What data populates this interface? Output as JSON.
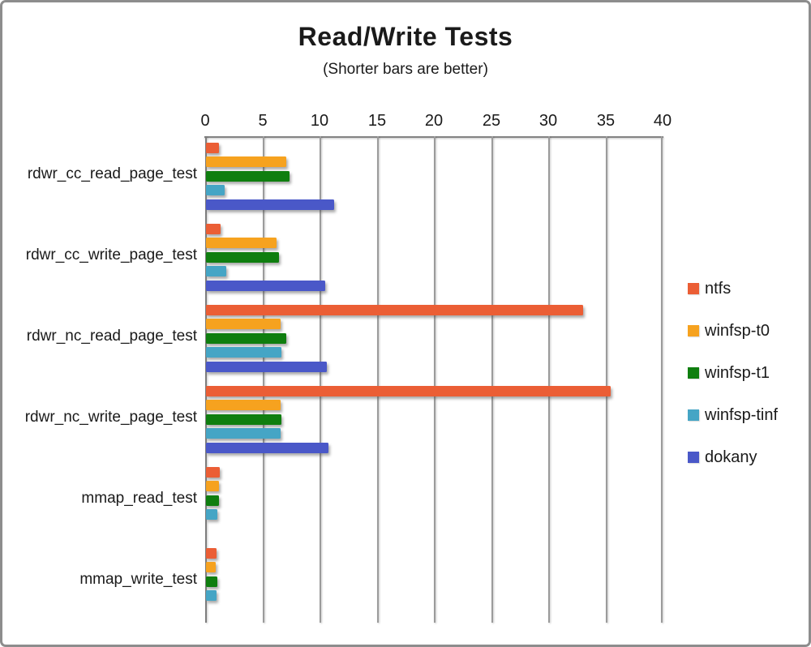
{
  "window": {
    "background": "#ffffff",
    "frame_border_color": "#8d8d8d"
  },
  "chart_data": {
    "type": "bar",
    "orientation": "horizontal",
    "title": "Read/Write Tests",
    "subtitle": "(Shorter bars are better)",
    "axis": {
      "position": "top",
      "min": 0,
      "max": 40,
      "tick_interval": 5,
      "tick_labels": [
        "0",
        "5",
        "10",
        "15",
        "20",
        "25",
        "30",
        "35",
        "40"
      ],
      "grid": true
    },
    "categories": [
      "rdwr_cc_read_page_test",
      "rdwr_cc_write_page_test",
      "rdwr_nc_read_page_test",
      "rdwr_nc_write_page_test",
      "mmap_read_test",
      "mmap_write_test"
    ],
    "series": [
      {
        "name": "ntfs",
        "color": "#EB5E35",
        "values": [
          1.1,
          1.3,
          33.0,
          35.4,
          1.2,
          0.9
        ]
      },
      {
        "name": "winfsp-t0",
        "color": "#F6A21F",
        "values": [
          7.0,
          6.2,
          6.5,
          6.5,
          1.1,
          0.85
        ]
      },
      {
        "name": "winfsp-t1",
        "color": "#0F7E0F",
        "values": [
          7.3,
          6.4,
          7.0,
          6.6,
          1.1,
          1.0
        ]
      },
      {
        "name": "winfsp-tinf",
        "color": "#45A5C5",
        "values": [
          1.6,
          1.8,
          6.6,
          6.5,
          1.0,
          0.9
        ]
      },
      {
        "name": "dokany",
        "color": "#4A58C8",
        "values": [
          11.2,
          10.4,
          10.6,
          10.7,
          0,
          0
        ]
      }
    ],
    "legend": {
      "position": "right"
    }
  },
  "layout_text": {}
}
